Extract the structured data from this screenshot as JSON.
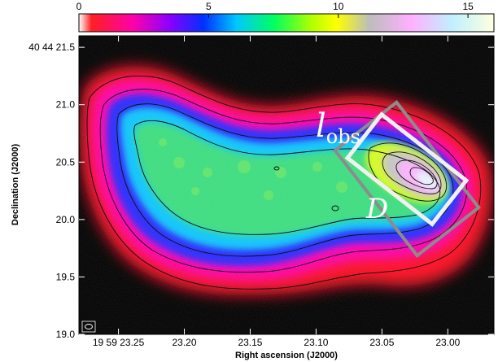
{
  "chart_data": {
    "type": "heatmap",
    "colorbar": {
      "min": 0,
      "max": 16,
      "tick_labels": [
        "0",
        "5",
        "10",
        "15"
      ],
      "tick_values": [
        0,
        5,
        10,
        15
      ],
      "colors": [
        "#ffffff",
        "#ff0000",
        "#ff00ff",
        "#0000ff",
        "#00e0ff",
        "#00ff00",
        "#ffff00",
        "#bdbdbd",
        "#ffc0ff",
        "#ffffff"
      ]
    },
    "xlabel": "Right ascension (J2000)",
    "ylabel": "Declination (J2000)",
    "x_ticks": [
      {
        "label": "19 59 23.25",
        "value": 23.25
      },
      {
        "label": "23.20",
        "value": 23.2
      },
      {
        "label": "23.15",
        "value": 23.15
      },
      {
        "label": "23.10",
        "value": 23.1
      },
      {
        "label": "23.05",
        "value": 23.05
      },
      {
        "label": "23.00",
        "value": 23.0
      }
    ],
    "y_ticks": [
      {
        "label": "40 44 21.5",
        "value": 21.5
      },
      {
        "label": "21.0",
        "value": 21.0
      },
      {
        "label": "20.5",
        "value": 20.5
      },
      {
        "label": "20.0",
        "value": 20.0
      },
      {
        "label": "19.5",
        "value": 19.5
      },
      {
        "label": "19.0",
        "value": 19.0
      }
    ],
    "xlim": [
      23.28,
      22.965
    ],
    "ylim": [
      19.0,
      21.6
    ],
    "annotations": [
      {
        "symbol": "l",
        "subscript": "obs"
      },
      {
        "symbol": "D",
        "subscript": ""
      }
    ]
  },
  "colors": {
    "background": "#000000",
    "contour": "#000000",
    "box_observed": "#f0f0f0",
    "box_deprojected": "#8c8c8c"
  }
}
